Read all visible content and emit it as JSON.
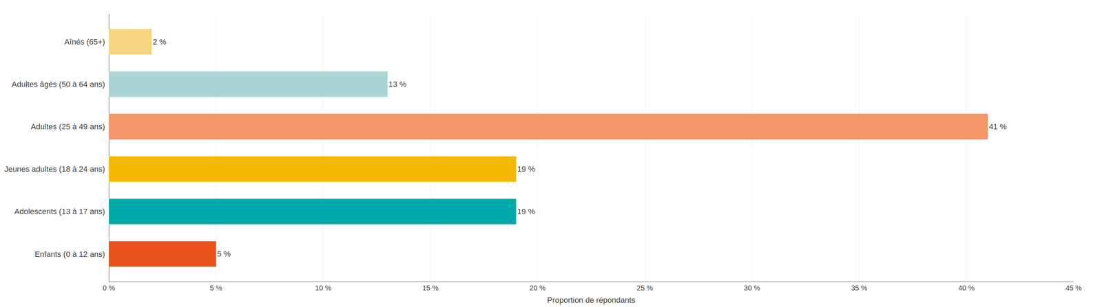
{
  "chart_data": {
    "type": "bar",
    "orientation": "horizontal",
    "categories": [
      "Enfants (0 à 12 ans)",
      "Adolescents (13 à 17 ans)",
      "Jeunes adultes (18 à 24 ans)",
      "Adultes (25 à 49 ans)",
      "Adultes âgés (50 à 64 ans)",
      "Aînés (65+)"
    ],
    "values": [
      5,
      19,
      19,
      41,
      13,
      2
    ],
    "value_labels": [
      "5 %",
      "19 %",
      "19 %",
      "41 %",
      "13 %",
      "2 %"
    ],
    "data_labels": true,
    "colors": [
      "#E8521A",
      "#00AAAA",
      "#F5B800",
      "#F4956A",
      "#A8D4D5",
      "#F5D580"
    ],
    "xlabel": "Proportion de répondants",
    "xlim": [
      0,
      45
    ],
    "xticks": [
      {
        "value": 0,
        "label": "0 %"
      },
      {
        "value": 5,
        "label": "5 %"
      },
      {
        "value": 10,
        "label": "10 %"
      },
      {
        "value": 15,
        "label": "15 %"
      },
      {
        "value": 20,
        "label": "20 %"
      },
      {
        "value": 25,
        "label": "25 %"
      },
      {
        "value": 30,
        "label": "30 %"
      },
      {
        "value": 35,
        "label": "35 %"
      },
      {
        "value": 40,
        "label": "40 %"
      },
      {
        "value": 45,
        "label": "45 %"
      }
    ],
    "grid": true
  }
}
